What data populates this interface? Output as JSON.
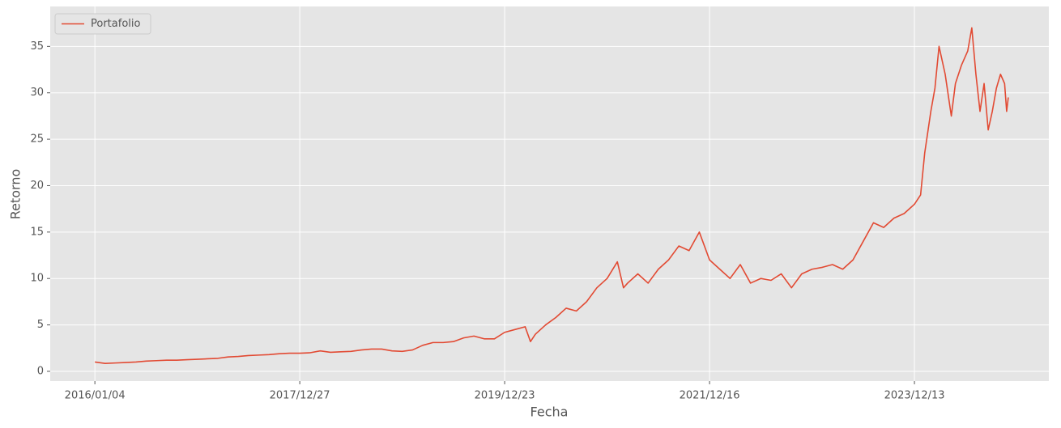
{
  "chart_data": {
    "type": "line",
    "xlabel": "Fecha",
    "ylabel": "Retorno",
    "x": [
      0,
      25,
      50,
      75,
      100,
      125,
      150,
      175,
      200,
      225,
      250,
      275,
      300,
      325,
      350,
      375,
      400,
      425,
      450,
      475,
      500,
      525,
      550,
      575,
      600,
      625,
      650,
      675,
      700,
      725,
      750,
      775,
      800,
      825,
      850,
      875,
      900,
      925,
      950,
      975,
      1000,
      1025,
      1050,
      1063,
      1075,
      1100,
      1125,
      1150,
      1175,
      1200,
      1225,
      1250,
      1275,
      1290,
      1300,
      1325,
      1350,
      1375,
      1400,
      1425,
      1450,
      1475,
      1500,
      1525,
      1550,
      1575,
      1600,
      1625,
      1650,
      1675,
      1700,
      1725,
      1750,
      1775,
      1800,
      1825,
      1850,
      1875,
      1900,
      1925,
      1950,
      1975,
      2000,
      2015,
      2025,
      2040,
      2050,
      2060,
      2075,
      2090,
      2100,
      2115,
      2130,
      2140,
      2150,
      2160,
      2170,
      2180,
      2190,
      2200,
      2210,
      2220,
      2225,
      2229
    ],
    "series": [
      {
        "name": "Portafolio",
        "color": "#E24A33",
        "values": [
          1.0,
          0.85,
          0.9,
          0.95,
          1.0,
          1.1,
          1.15,
          1.2,
          1.2,
          1.25,
          1.3,
          1.35,
          1.4,
          1.55,
          1.6,
          1.7,
          1.75,
          1.8,
          1.9,
          1.95,
          1.95,
          2.0,
          2.2,
          2.05,
          2.1,
          2.15,
          2.3,
          2.4,
          2.4,
          2.2,
          2.15,
          2.3,
          2.8,
          3.1,
          3.1,
          3.2,
          3.6,
          3.8,
          3.5,
          3.5,
          4.2,
          4.5,
          4.8,
          3.2,
          4.0,
          5.0,
          5.8,
          6.8,
          6.5,
          7.5,
          9.0,
          10.0,
          11.8,
          9.0,
          9.5,
          10.5,
          9.5,
          11.0,
          12.0,
          13.5,
          13.0,
          15.0,
          12.0,
          11.0,
          10.0,
          11.5,
          9.5,
          10.0,
          9.8,
          10.5,
          9.0,
          10.5,
          11.0,
          11.2,
          11.5,
          11.0,
          12.0,
          14.0,
          16.0,
          15.5,
          16.5,
          17.0,
          18.0,
          19.0,
          23.5,
          28.0,
          30.5,
          35.0,
          32.0,
          27.5,
          31.0,
          33.0,
          34.5,
          37.0,
          32.0,
          28.0,
          31.0,
          26.0,
          28.0,
          30.5,
          32.0,
          31.0,
          28.0,
          29.5
        ]
      }
    ],
    "xlim": [
      -109,
      2328
    ],
    "xticks": [
      {
        "value": 0,
        "label": "2016/01/04"
      },
      {
        "value": 500,
        "label": "2017/12/27"
      },
      {
        "value": 1000,
        "label": "2019/12/23"
      },
      {
        "value": 1500,
        "label": "2021/12/16"
      },
      {
        "value": 2000,
        "label": "2023/12/13"
      }
    ],
    "ylim": [
      -1.05,
      39.3
    ],
    "yticks": [
      0,
      5,
      10,
      15,
      20,
      25,
      30,
      35
    ],
    "grid": true,
    "legend": "upper left"
  }
}
